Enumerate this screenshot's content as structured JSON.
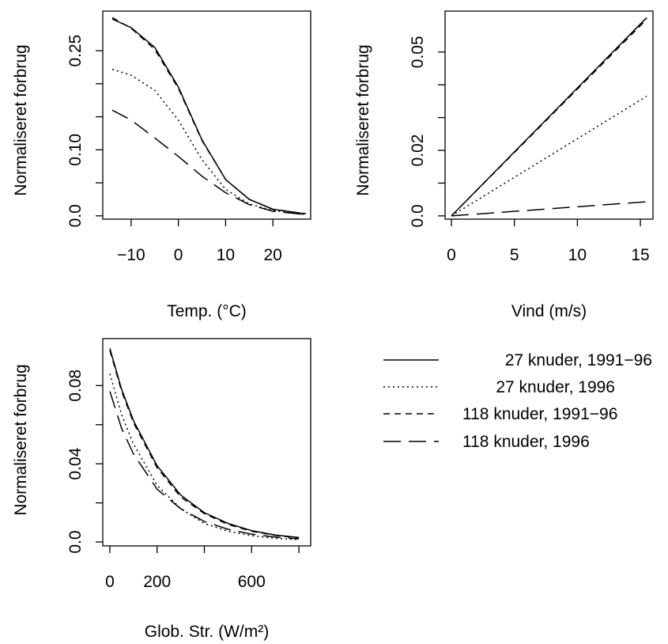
{
  "chart_data": [
    {
      "type": "line",
      "xlabel": "Temp. (°C)",
      "ylabel": "Normaliseret forbrug",
      "xlim": [
        -16,
        28
      ],
      "ylim": [
        -0.005,
        0.31
      ],
      "xticks": [
        -10,
        0,
        10,
        20
      ],
      "xtick_labels": [
        "−10",
        "0",
        "10",
        "20"
      ],
      "yticks": [
        0.0,
        0.05,
        0.1,
        0.15,
        0.2,
        0.25
      ],
      "ytick_labels": [
        "0.0",
        "",
        "0.10",
        "",
        "",
        "0.25"
      ],
      "grid": false,
      "series": [
        {
          "style": "solid",
          "x": [
            -14,
            -10,
            -5,
            0,
            5,
            10,
            15,
            20,
            27
          ],
          "y": [
            0.298,
            0.285,
            0.255,
            0.195,
            0.115,
            0.055,
            0.025,
            0.01,
            0.003
          ]
        },
        {
          "style": "dotted",
          "x": [
            -14,
            -10,
            -5,
            0,
            5,
            10,
            15,
            20,
            27
          ],
          "y": [
            0.222,
            0.213,
            0.19,
            0.145,
            0.085,
            0.04,
            0.018,
            0.008,
            0.002
          ]
        },
        {
          "style": "dashed",
          "x": [
            -14,
            -10,
            -5,
            0,
            5,
            10,
            15,
            20,
            27
          ],
          "y": [
            0.3,
            0.284,
            0.252,
            0.193,
            0.114,
            0.055,
            0.025,
            0.01,
            0.003
          ]
        },
        {
          "style": "longdash",
          "x": [
            -14,
            -10,
            -5,
            0,
            5,
            10,
            15,
            20,
            27
          ],
          "y": [
            0.16,
            0.145,
            0.118,
            0.09,
            0.06,
            0.035,
            0.017,
            0.007,
            0.002
          ]
        }
      ]
    },
    {
      "type": "line",
      "xlabel": "Vind (m/s)",
      "ylabel": "Normaliseret forbrug",
      "xlim": [
        -0.5,
        16
      ],
      "ylim": [
        -0.001,
        0.0625
      ],
      "xticks": [
        0,
        5,
        10,
        15
      ],
      "xtick_labels": [
        "0",
        "5",
        "10",
        "15"
      ],
      "yticks": [
        0.0,
        0.01,
        0.02,
        0.03,
        0.04,
        0.05
      ],
      "ytick_labels": [
        "0.0",
        "",
        "0.02",
        "",
        "",
        "0.05"
      ],
      "grid": false,
      "series": [
        {
          "style": "solid",
          "x": [
            0,
            15.5
          ],
          "y": [
            0.0,
            0.0605
          ]
        },
        {
          "style": "dotted",
          "x": [
            0,
            15.5
          ],
          "y": [
            0.0,
            0.0365
          ]
        },
        {
          "style": "dashed",
          "x": [
            0,
            15.5
          ],
          "y": [
            0.0,
            0.06
          ]
        },
        {
          "style": "longdash",
          "x": [
            0,
            15.5
          ],
          "y": [
            0.0,
            0.0043
          ]
        }
      ]
    },
    {
      "type": "line",
      "xlabel": "Glob. Str. (W/m²)",
      "ylabel": "Normaliseret forbrug",
      "xlim": [
        -30,
        850
      ],
      "ylim": [
        -0.002,
        0.104
      ],
      "xticks": [
        0,
        200,
        400,
        600,
        800
      ],
      "xtick_labels": [
        "0",
        "200",
        "",
        "600",
        ""
      ],
      "yticks": [
        0.0,
        0.02,
        0.04,
        0.06,
        0.08
      ],
      "ytick_labels": [
        "0.0",
        "",
        "0.04",
        "",
        "0.08"
      ],
      "grid": false,
      "series": [
        {
          "style": "solid",
          "x": [
            0,
            50,
            100,
            200,
            300,
            400,
            500,
            600,
            700,
            800
          ],
          "y": [
            0.099,
            0.078,
            0.062,
            0.039,
            0.024,
            0.015,
            0.0095,
            0.0058,
            0.0036,
            0.0023
          ]
        },
        {
          "style": "dotted",
          "x": [
            0,
            50,
            100,
            200,
            300,
            400,
            500,
            600,
            700,
            800
          ],
          "y": [
            0.086,
            0.065,
            0.05,
            0.029,
            0.017,
            0.0095,
            0.0055,
            0.0032,
            0.0019,
            0.0012
          ]
        },
        {
          "style": "dashed",
          "x": [
            0,
            50,
            100,
            200,
            300,
            400,
            500,
            600,
            700,
            800
          ],
          "y": [
            0.098,
            0.077,
            0.061,
            0.038,
            0.023,
            0.0145,
            0.009,
            0.0055,
            0.0034,
            0.0021
          ]
        },
        {
          "style": "longdash",
          "x": [
            0,
            50,
            100,
            200,
            300,
            400,
            500,
            600,
            700,
            800
          ],
          "y": [
            0.077,
            0.058,
            0.045,
            0.027,
            0.017,
            0.0105,
            0.0065,
            0.004,
            0.0025,
            0.0016
          ]
        }
      ]
    }
  ],
  "legend": {
    "placement": "bottom-right",
    "entries": [
      {
        "label": "27 knuder, 1991−96",
        "style": "solid"
      },
      {
        "label": "27 knuder, 1996",
        "style": "dotted"
      },
      {
        "label": "118 knuder, 1991−96",
        "style": "dashed"
      },
      {
        "label": "118 knuder, 1996",
        "style": "longdash"
      }
    ]
  },
  "styles": {
    "solid": "",
    "dotted": "2,4",
    "dashed": "8,6",
    "longdash": "22,10"
  }
}
